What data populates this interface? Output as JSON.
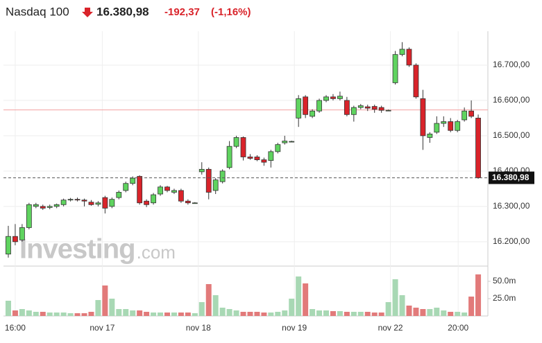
{
  "chart_data": {
    "type": "candlestick",
    "header": {
      "name": "Nasdaq 100",
      "price": "16.380,98",
      "change": "-192,37",
      "change_pct": "(-1,16%)"
    },
    "watermark": [
      "Investing",
      ".com"
    ],
    "open": [
      16165,
      16215,
      16205,
      16240,
      16300,
      16300,
      16297,
      16300,
      16305,
      16318,
      16320,
      16318,
      16312,
      16306,
      16325,
      16300,
      16325,
      16345,
      16365,
      16385,
      16315,
      16310,
      16335,
      16355,
      16340,
      16345,
      16315,
      16310,
      16398,
      16405,
      16345,
      16370,
      16410,
      16470,
      16495,
      16440,
      16440,
      16432,
      16430,
      16455,
      16480,
      16484,
      16550,
      16610,
      16555,
      16570,
      16600,
      16610,
      16605,
      16600,
      16560,
      16580,
      16582,
      16583,
      16580,
      16572,
      16650,
      16730,
      16745,
      16700,
      16605,
      16495,
      16510,
      16535,
      16540,
      16515,
      16545,
      16570,
      16550
    ],
    "high": [
      16245,
      16250,
      16250,
      16310,
      16310,
      16305,
      16305,
      16308,
      16322,
      16324,
      16325,
      16322,
      16318,
      16315,
      16330,
      16325,
      16345,
      16370,
      16385,
      16388,
      16320,
      16338,
      16360,
      16358,
      16350,
      16350,
      16320,
      16312,
      16425,
      16410,
      16380,
      16405,
      16485,
      16500,
      16498,
      16448,
      16445,
      16438,
      16460,
      16480,
      16500,
      16486,
      16615,
      16615,
      16575,
      16605,
      16615,
      16618,
      16625,
      16610,
      16585,
      16590,
      16588,
      16588,
      16585,
      16574,
      16740,
      16765,
      16750,
      16705,
      16630,
      16510,
      16555,
      16555,
      16550,
      16545,
      16580,
      16600,
      16560
    ],
    "low": [
      16155,
      16190,
      16200,
      16235,
      16295,
      16290,
      16292,
      16295,
      16300,
      16314,
      16314,
      16300,
      16302,
      16300,
      16280,
      16295,
      16320,
      16340,
      16360,
      16305,
      16298,
      16305,
      16330,
      16340,
      16335,
      16310,
      16305,
      16308,
      16390,
      16320,
      16335,
      16365,
      16405,
      16465,
      16430,
      16432,
      16428,
      16415,
      16410,
      16450,
      16475,
      16482,
      16525,
      16550,
      16550,
      16565,
      16595,
      16600,
      16600,
      16555,
      16540,
      16575,
      16570,
      16565,
      16565,
      16570,
      16645,
      16725,
      16695,
      16605,
      16460,
      16480,
      16505,
      16525,
      16510,
      16510,
      16540,
      16550,
      16378
    ],
    "close": [
      16215,
      16200,
      16240,
      16305,
      16305,
      16295,
      16300,
      16305,
      16318,
      16320,
      16318,
      16315,
      16305,
      16310,
      16295,
      16320,
      16340,
      16365,
      16380,
      16310,
      16305,
      16333,
      16355,
      16345,
      16345,
      16315,
      16310,
      16310,
      16405,
      16340,
      16375,
      16400,
      16470,
      16495,
      16440,
      16436,
      16432,
      16425,
      16455,
      16475,
      16485,
      16484,
      16605,
      16560,
      16570,
      16600,
      16610,
      16605,
      16612,
      16560,
      16580,
      16585,
      16578,
      16575,
      16572,
      16572,
      16730,
      16745,
      16700,
      16610,
      16500,
      16505,
      16535,
      16540,
      16515,
      16540,
      16570,
      16555,
      16380.98
    ],
    "volume": [
      22,
      8,
      10,
      8,
      6,
      6,
      5,
      5,
      5,
      4,
      4,
      4,
      6,
      23,
      44,
      25,
      10,
      10,
      8,
      8,
      6,
      5,
      5,
      5,
      5,
      5,
      5,
      4,
      20,
      46,
      30,
      12,
      10,
      8,
      6,
      6,
      6,
      5,
      5,
      6,
      8,
      25,
      57,
      47,
      10,
      8,
      8,
      7,
      7,
      6,
      6,
      6,
      6,
      5,
      5,
      20,
      53,
      30,
      15,
      12,
      10,
      10,
      12,
      8,
      6,
      6,
      5,
      28,
      60
    ],
    "up_color": "#5fd35f",
    "down_color": "#d9232a",
    "vol_up_color": "#a8d8b4",
    "vol_down_color": "#e27a7a",
    "xlim": [
      -0.7,
      69.4
    ],
    "xticks": [
      {
        "value": 1.0,
        "label": "16:00"
      },
      {
        "value": 13.6,
        "label": "nov 17"
      },
      {
        "value": 27.5,
        "label": "nov 18"
      },
      {
        "value": 41.4,
        "label": "nov 19"
      },
      {
        "value": 55.3,
        "label": "nov 22"
      },
      {
        "value": 65.1,
        "label": "20:00"
      }
    ],
    "ylim": [
      16133,
      16796
    ],
    "yticks": [
      {
        "value": 16200,
        "label": "16.200,00"
      },
      {
        "value": 16300,
        "label": "16.300,00"
      },
      {
        "value": 16400,
        "label": "16.400,00"
      },
      {
        "value": 16500,
        "label": "16.500,00"
      },
      {
        "value": 16600,
        "label": "16.600,00"
      },
      {
        "value": 16700,
        "label": "16.700,00"
      }
    ],
    "y2lim": [
      0,
      71
    ],
    "y2ticks": [
      {
        "value": 25,
        "label": "25.0m"
      },
      {
        "value": 50,
        "label": "50.0m"
      }
    ],
    "prev_close": 16573,
    "last_price": {
      "value": 16380.98,
      "label": "16.380,98"
    },
    "grid": true
  }
}
